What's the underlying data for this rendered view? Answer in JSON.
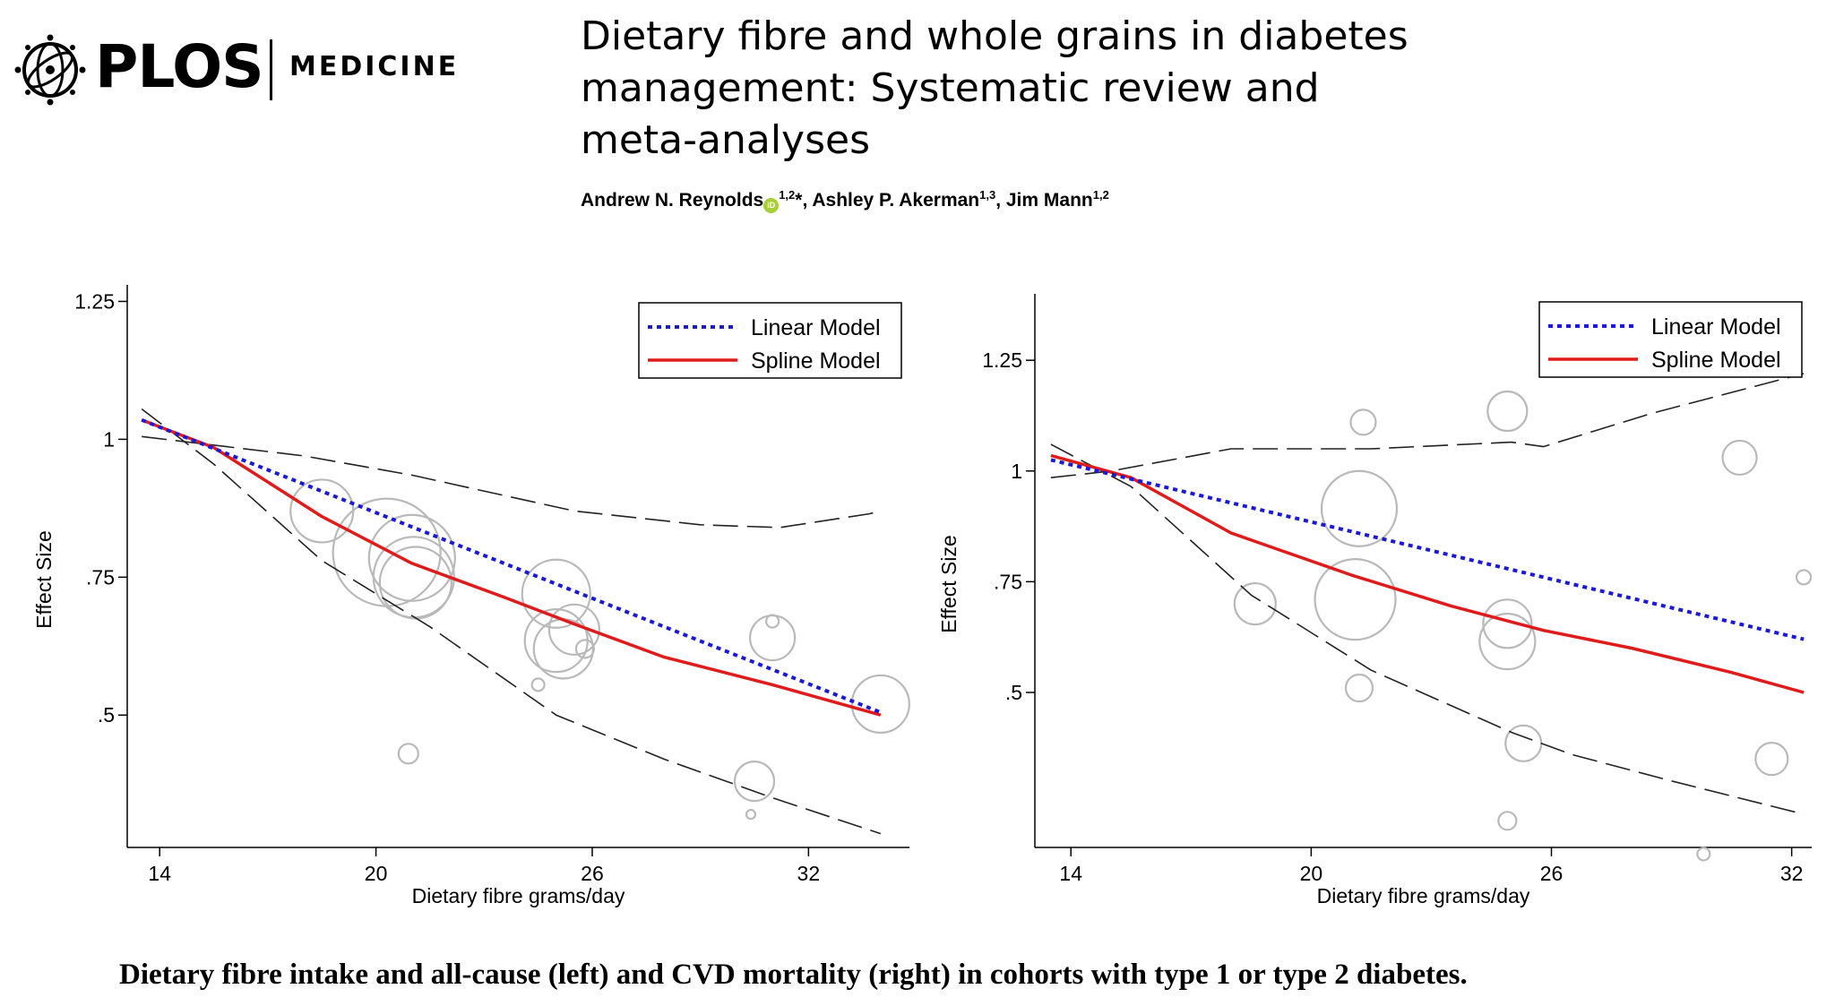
{
  "journal": {
    "publisher_name": "PLOS",
    "journal_name": "MEDICINE"
  },
  "paper": {
    "title": "Dietary fibre and whole grains in diabetes management: Systematic review and meta-analyses",
    "authors": [
      {
        "name": "Andrew N. Reynolds",
        "orcid_icon": "orcid-icon",
        "affiliations": "1,2",
        "marker": "*"
      },
      {
        "name": "Ashley P. Akerman",
        "affiliations": "1,3"
      },
      {
        "name": "Jim Mann",
        "affiliations": "1,2"
      }
    ]
  },
  "caption": "Dietary fibre intake and all-cause (left) and CVD mortality (right) in cohorts with type 1 or type 2 diabetes.",
  "colors": {
    "linear": "#1a1ad6",
    "spline": "#e01b1b",
    "ci": "#222222",
    "bubble": "#b9b9b9"
  },
  "chart_data": [
    {
      "type": "scatter",
      "title": "",
      "xlabel": "Dietary fibre grams/day",
      "ylabel": "Effect Size",
      "xlim": [
        13.1,
        34.8
      ],
      "ylim": [
        0.26,
        1.28
      ],
      "xticks": [
        14,
        20,
        26,
        32
      ],
      "xtick_labels": [
        "14",
        "20",
        "26",
        "32"
      ],
      "yticks": [
        0.5,
        0.75,
        1,
        1.25
      ],
      "ytick_labels": [
        ".5",
        ".75",
        "1",
        "1.25"
      ],
      "legend_position": "top-right",
      "series": [
        {
          "name": "Linear Model",
          "style": "dotted",
          "color": "#1a1ad6",
          "x": [
            13.5,
            34
          ],
          "y": [
            1.035,
            0.505
          ]
        },
        {
          "name": "Spline Model",
          "style": "solid",
          "color": "#e01b1b",
          "x": [
            13.5,
            15.5,
            18.5,
            21,
            23.5,
            25.5,
            28,
            31,
            34
          ],
          "y": [
            1.035,
            0.985,
            0.86,
            0.775,
            0.715,
            0.665,
            0.605,
            0.555,
            0.5
          ]
        },
        {
          "name": "Upper CI",
          "style": "long-dash",
          "color": "#222222",
          "x": [
            13.5,
            18,
            21,
            25.5,
            29,
            31.2,
            33.7,
            34
          ],
          "y": [
            1.005,
            0.97,
            0.935,
            0.87,
            0.845,
            0.84,
            0.865,
            0.87
          ]
        },
        {
          "name": "Lower CI",
          "style": "long-dash",
          "color": "#222222",
          "x": [
            13.5,
            15.5,
            18.5,
            21.5,
            25,
            28,
            31,
            34
          ],
          "y": [
            1.055,
            0.955,
            0.78,
            0.66,
            0.5,
            0.42,
            0.35,
            0.285
          ]
        },
        {
          "name": "Cohort studies",
          "style": "bubble",
          "color": "#b9b9b9",
          "x": [
            18.5,
            20.3,
            21,
            21.05,
            21.1,
            25,
            25,
            25.2,
            25.5,
            25.8,
            24.5,
            31,
            31,
            30.5,
            34,
            20.9,
            30.4
          ],
          "y": [
            0.87,
            0.795,
            0.785,
            0.75,
            0.74,
            0.72,
            0.635,
            0.62,
            0.655,
            0.62,
            0.555,
            0.64,
            0.67,
            0.38,
            0.52,
            0.43,
            0.32
          ],
          "size": [
            35,
            60,
            48,
            45,
            40,
            38,
            35,
            33,
            28,
            10,
            7,
            25,
            7,
            22,
            32,
            11,
            5
          ]
        }
      ]
    },
    {
      "type": "scatter",
      "title": "",
      "xlabel": "Dietary fibre grams/day",
      "ylabel": "Effect Size",
      "xlim": [
        13.1,
        32.5
      ],
      "ylim": [
        0.15,
        1.4
      ],
      "xticks": [
        14,
        20,
        26,
        32
      ],
      "xtick_labels": [
        "14",
        "20",
        "26",
        "32"
      ],
      "yticks": [
        0.5,
        0.75,
        1,
        1.25
      ],
      "ytick_labels": [
        ".5",
        ".75",
        "1",
        "1.25"
      ],
      "legend_position": "top-right",
      "series": [
        {
          "name": "Linear Model",
          "style": "dotted",
          "color": "#1a1ad6",
          "x": [
            13.5,
            32.3
          ],
          "y": [
            1.025,
            0.62
          ]
        },
        {
          "name": "Spline Model",
          "style": "solid",
          "color": "#e01b1b",
          "x": [
            13.5,
            15.5,
            18,
            21,
            23.5,
            25.8,
            28,
            30.5,
            32.3
          ],
          "y": [
            1.035,
            0.985,
            0.86,
            0.765,
            0.695,
            0.64,
            0.6,
            0.545,
            0.5
          ]
        },
        {
          "name": "Upper CI",
          "style": "long-dash",
          "color": "#222222",
          "x": [
            13.5,
            15,
            18,
            21.5,
            25,
            25.8,
            28.5,
            32.3
          ],
          "y": [
            0.985,
            1.0,
            1.05,
            1.05,
            1.065,
            1.055,
            1.13,
            1.22
          ]
        },
        {
          "name": "Lower CI",
          "style": "long-dash",
          "color": "#222222",
          "x": [
            13.5,
            15.5,
            18.5,
            21.5,
            25,
            26.5,
            29,
            32.3
          ],
          "y": [
            1.06,
            0.965,
            0.72,
            0.55,
            0.41,
            0.36,
            0.3,
            0.225
          ]
        },
        {
          "name": "Cohort studies",
          "style": "bubble",
          "color": "#b9b9b9",
          "x": [
            21.2,
            21.1,
            18.6,
            21.3,
            24.9,
            24.9,
            24.9,
            25.3,
            21.2,
            24.9,
            30.7,
            31.5,
            32.3,
            29.8
          ],
          "y": [
            0.915,
            0.71,
            0.7,
            1.11,
            1.135,
            0.655,
            0.615,
            0.385,
            0.51,
            0.21,
            1.03,
            0.35,
            0.76,
            0.135
          ],
          "size": [
            42,
            45,
            23,
            14,
            22,
            27,
            31,
            20,
            15,
            10,
            19,
            18,
            8,
            7
          ]
        }
      ]
    }
  ]
}
